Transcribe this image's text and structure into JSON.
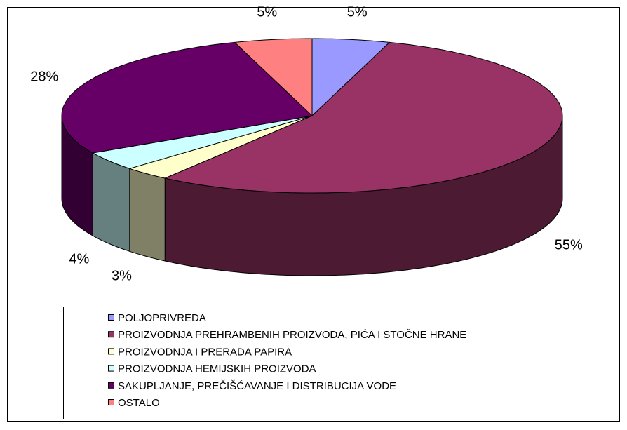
{
  "chart_data": {
    "type": "pie",
    "categories": [
      "POLJOPRIVREDA",
      "PROIZVODNJA PREHRAMBENIH PROIZVODA, PIĆA I STOČNE HRANE",
      "PROIZVODNJA I PRERADA PAPIRA",
      "PROIZVODNJA HEMIJSKIH PROIZVODA",
      "SAKUPLJANJE, PREČIŠĆAVANJE I DISTRIBUCIJA VODE",
      "OSTALO"
    ],
    "values": [
      5,
      55,
      3,
      4,
      28,
      5
    ],
    "value_labels": [
      "5%",
      "55%",
      "3%",
      "4%",
      "28%",
      "5%"
    ],
    "colors": [
      "#9999ff",
      "#993366",
      "#ffffcc",
      "#ccffff",
      "#660066",
      "#ff8080"
    ],
    "legend": "bottom"
  }
}
